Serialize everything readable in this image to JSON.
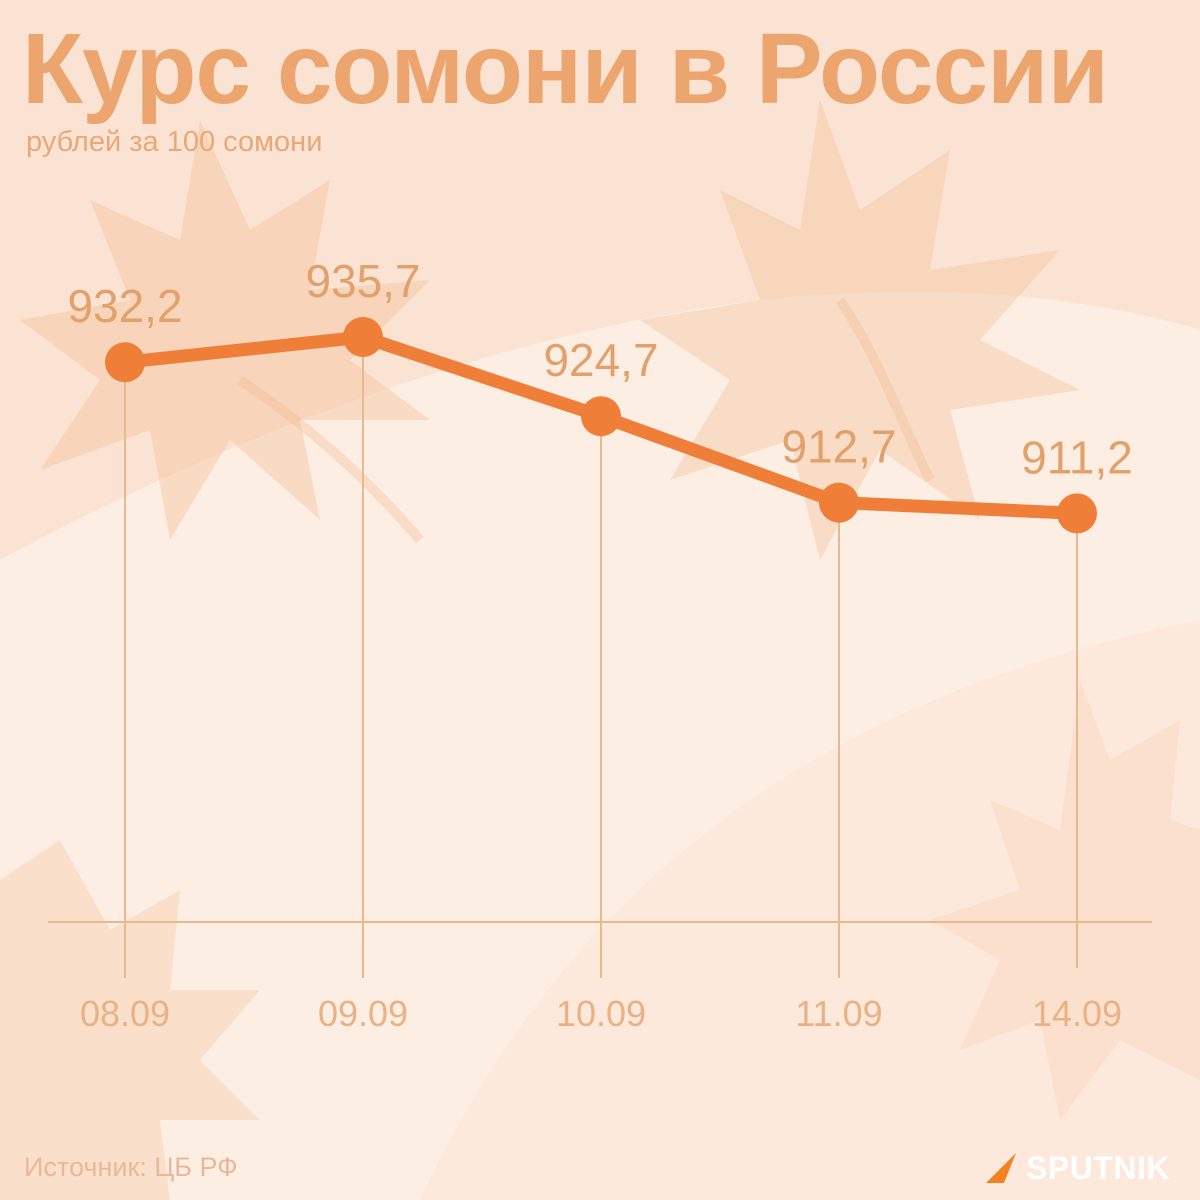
{
  "title": "Курс сомони в России",
  "subtitle": "рублей за 100 сомони",
  "source": "Источник: ЦБ РФ",
  "brand": "SPUTNIK",
  "colors": {
    "line": "#ef7e39",
    "title": "#eda56f",
    "axis": "#e9b98e",
    "background": "#fbe3d3"
  },
  "chart_data": {
    "type": "line",
    "categories": [
      "08.09",
      "09.09",
      "10.09",
      "11.09",
      "14.09"
    ],
    "values": [
      932.2,
      935.7,
      924.7,
      912.7,
      911.2
    ],
    "value_labels": [
      "932,2",
      "935,7",
      "924,7",
      "912,7",
      "911,2"
    ],
    "title": "Курс сомони в России",
    "subtitle": "рублей за 100 сомони",
    "grid": false,
    "legend": "none"
  }
}
